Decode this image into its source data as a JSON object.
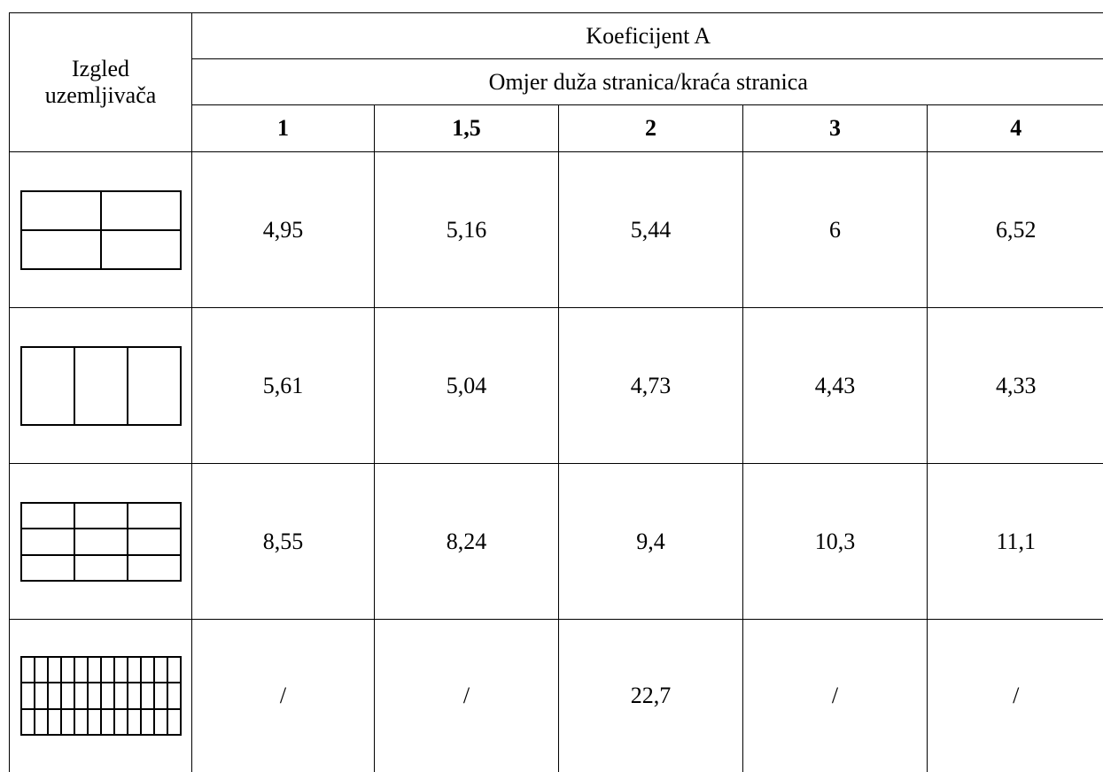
{
  "table": {
    "corner_label_line1": "Izgled",
    "corner_label_line2": "uzemljivača",
    "header_top": "Koeficijent A",
    "header_sub": "Omjer duža stranica/kraća stranica",
    "columns": [
      "1",
      "1,5",
      "2",
      "3",
      "4"
    ],
    "rows": [
      {
        "icon": "grid-2x2-icon",
        "values": [
          "4,95",
          "5,16",
          "5,44",
          "6",
          "6,52"
        ]
      },
      {
        "icon": "grid-1x3-icon",
        "values": [
          "5,61",
          "5,04",
          "4,73",
          "4,43",
          "4,33"
        ]
      },
      {
        "icon": "grid-3x3-icon",
        "values": [
          "8,55",
          "8,24",
          "9,4",
          "10,3",
          "11,1"
        ]
      },
      {
        "icon": "grid-3x12-icon",
        "values": [
          "/",
          "/",
          "22,7",
          "/",
          "/"
        ]
      }
    ]
  }
}
